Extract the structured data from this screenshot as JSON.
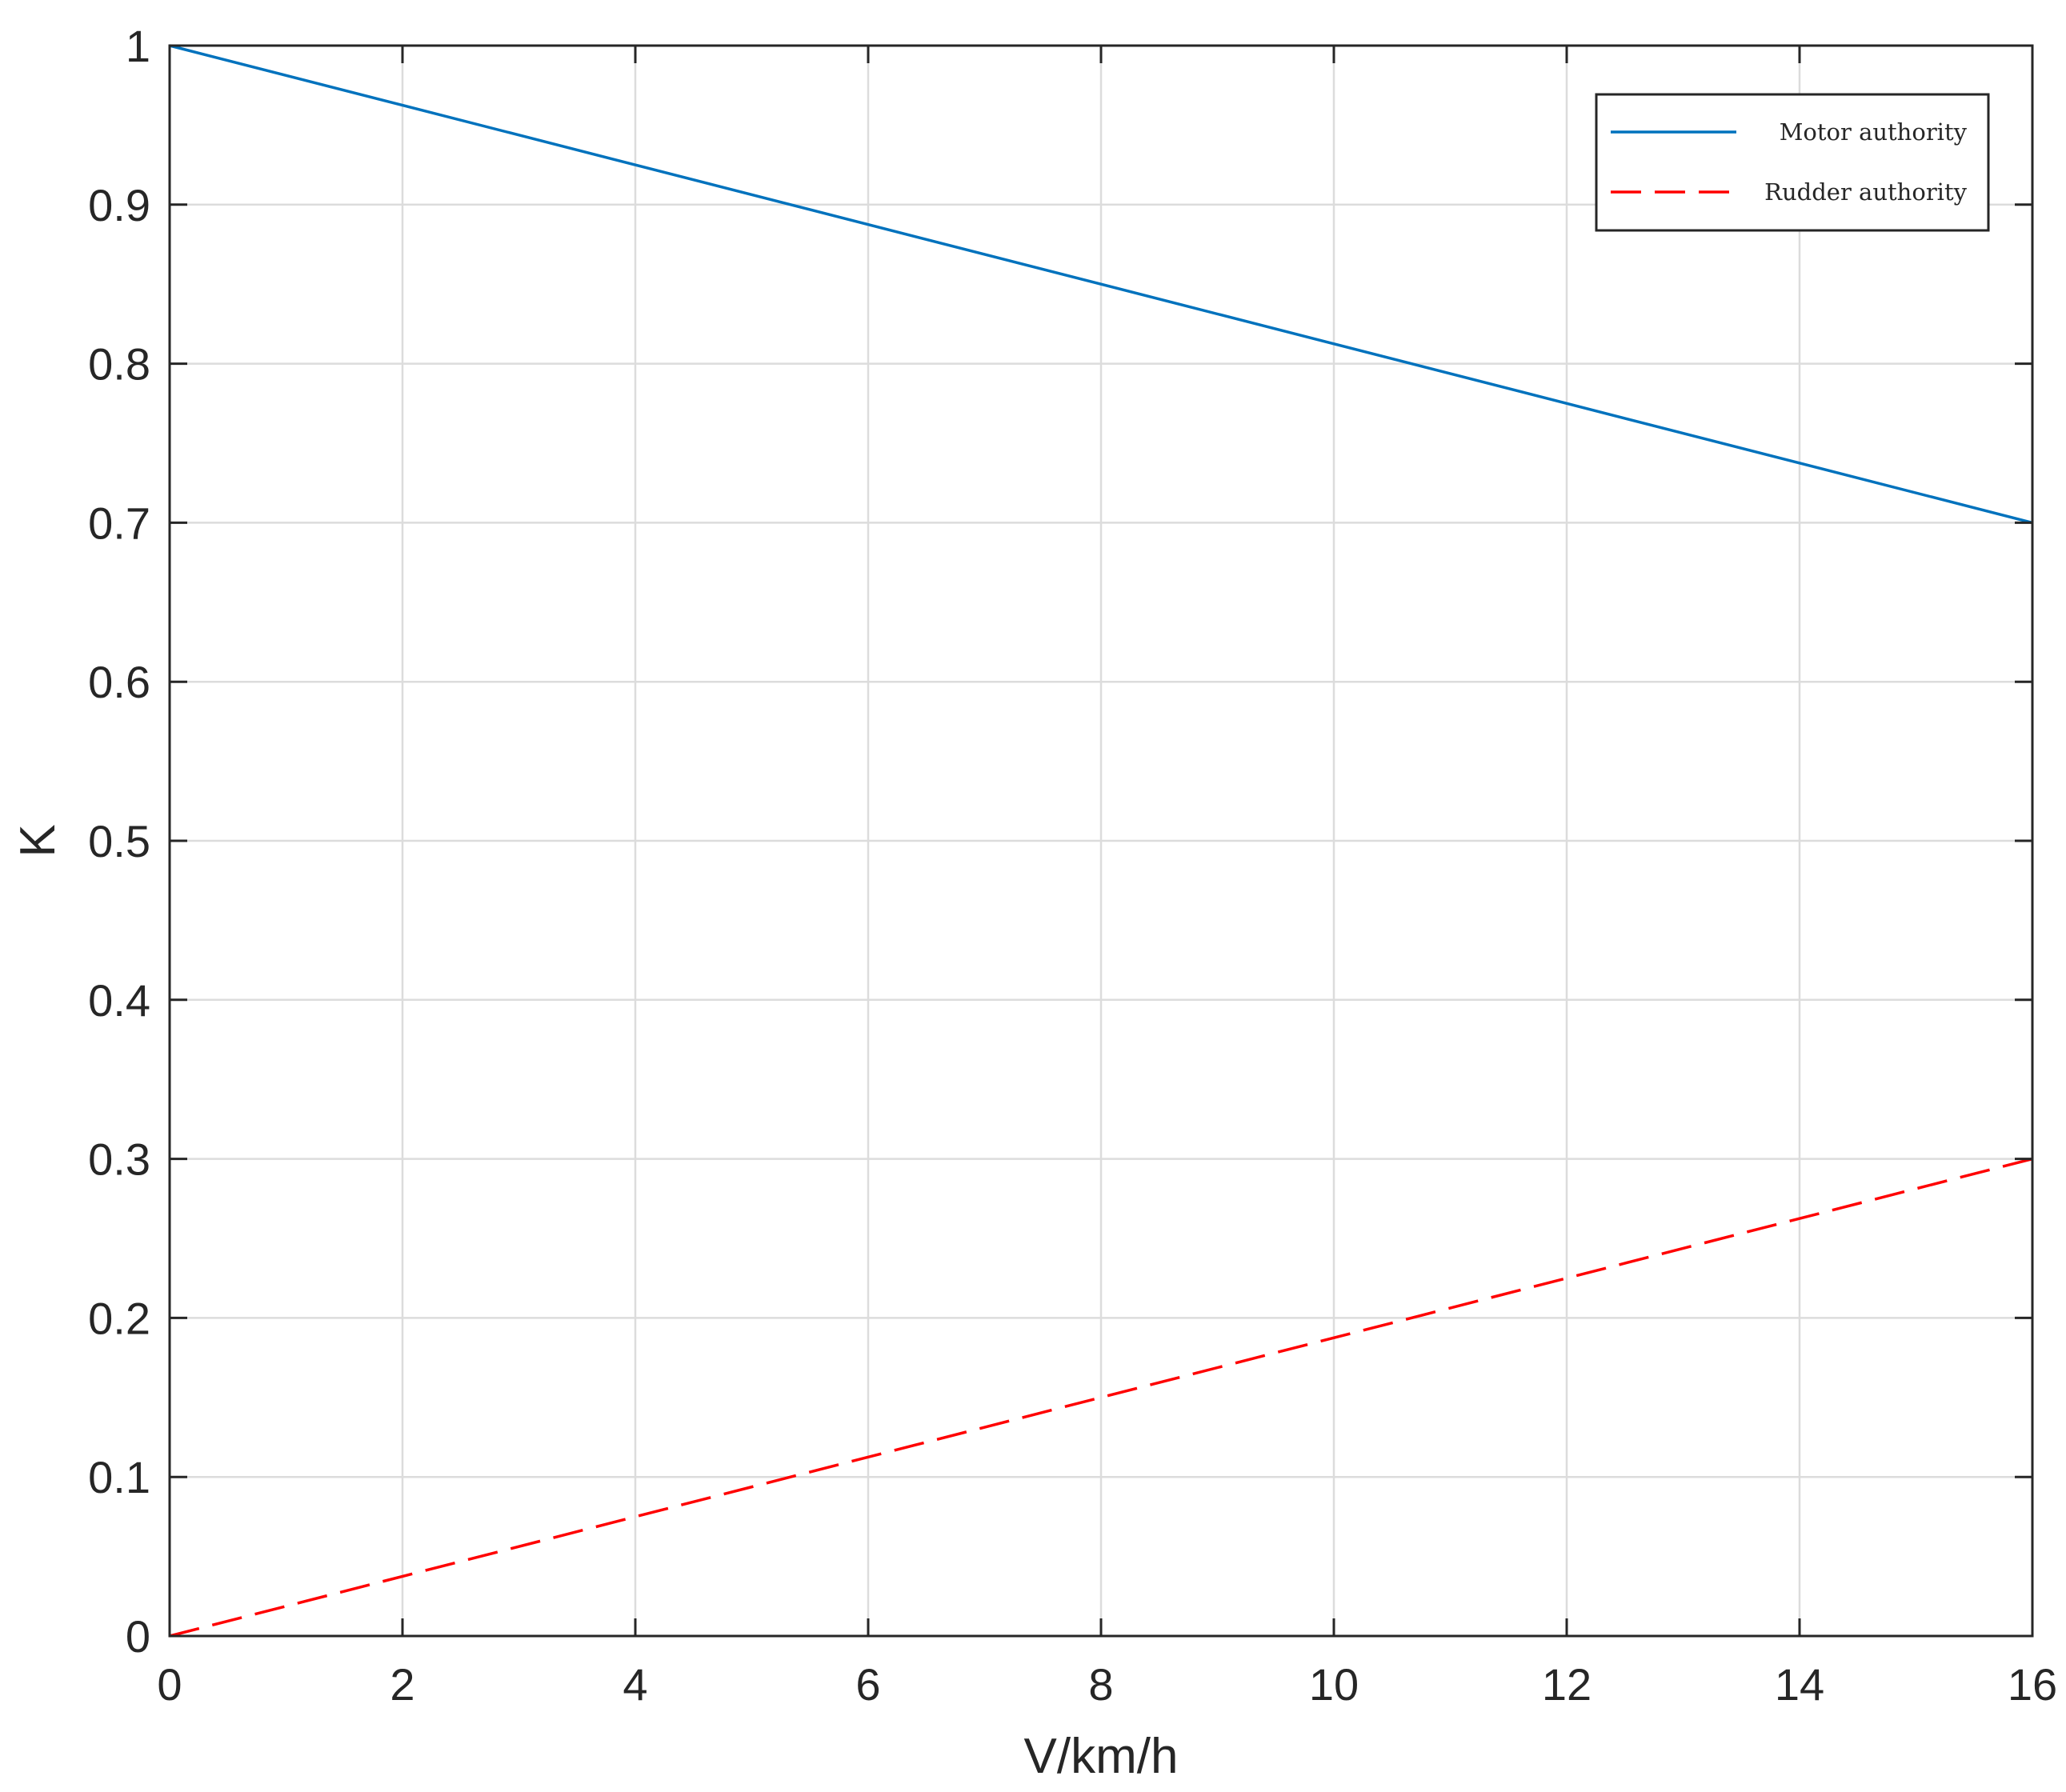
{
  "chart_data": {
    "type": "line",
    "title": "",
    "xlabel": "V/km/h",
    "ylabel": "K",
    "xlim": [
      0,
      16
    ],
    "ylim": [
      0,
      1
    ],
    "xticks": [
      0,
      2,
      4,
      6,
      8,
      10,
      12,
      14,
      16
    ],
    "yticks": [
      0,
      0.1,
      0.2,
      0.3,
      0.4,
      0.5,
      0.6,
      0.7,
      0.8,
      0.9,
      1
    ],
    "xtick_labels": [
      "0",
      "2",
      "4",
      "6",
      "8",
      "10",
      "12",
      "14",
      "16"
    ],
    "ytick_labels": [
      "0",
      "0.1",
      "0.2",
      "0.3",
      "0.4",
      "0.5",
      "0.6",
      "0.7",
      "0.8",
      "0.9",
      "1"
    ],
    "grid": true,
    "legend_position": "top-right",
    "series": [
      {
        "name": "Motor authority",
        "color": "#0072BD",
        "style": "solid",
        "x": [
          0,
          16
        ],
        "y": [
          1,
          0.7
        ]
      },
      {
        "name": "Rudder authority",
        "color": "#FF0000",
        "style": "dashed",
        "x": [
          0,
          16
        ],
        "y": [
          0,
          0.3
        ]
      }
    ]
  }
}
